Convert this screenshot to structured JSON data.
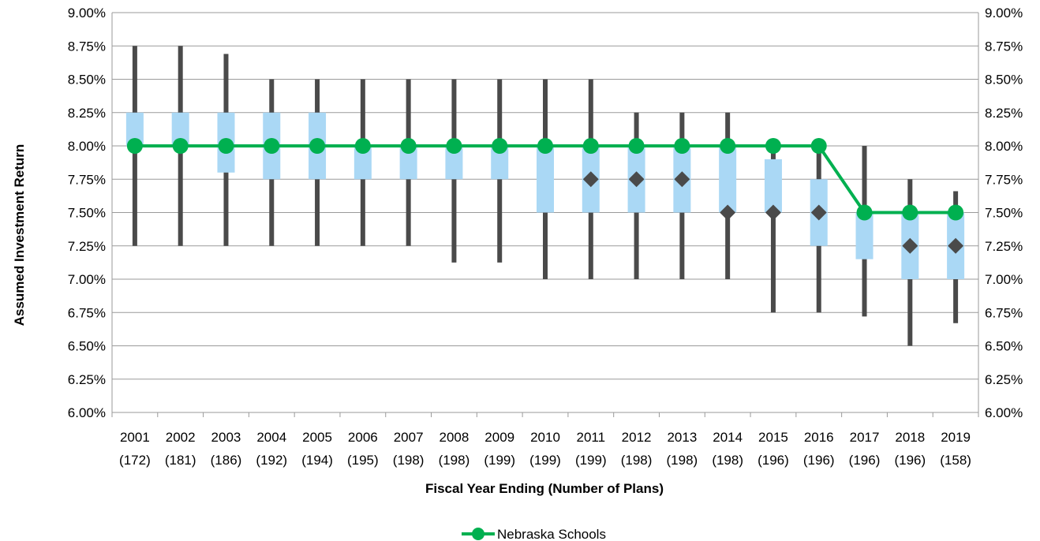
{
  "chart_data": {
    "type": "box",
    "xlabel": "Fiscal Year Ending (Number of Plans)",
    "ylabel": "Assumed Investment Return",
    "ylim": [
      6.0,
      9.0
    ],
    "y_tick_labels": [
      "6.00%",
      "6.25%",
      "6.50%",
      "6.75%",
      "7.00%",
      "7.25%",
      "7.50%",
      "7.75%",
      "8.00%",
      "8.25%",
      "8.50%",
      "8.75%",
      "9.00%"
    ],
    "y_ticks": [
      6.0,
      6.25,
      6.5,
      6.75,
      7.0,
      7.25,
      7.5,
      7.75,
      8.0,
      8.25,
      8.5,
      8.75,
      9.0
    ],
    "categories": [
      "2001",
      "2002",
      "2003",
      "2004",
      "2005",
      "2006",
      "2007",
      "2008",
      "2009",
      "2010",
      "2011",
      "2012",
      "2013",
      "2014",
      "2015",
      "2016",
      "2017",
      "2018",
      "2019"
    ],
    "plan_counts": [
      "(172)",
      "(181)",
      "(186)",
      "(192)",
      "(194)",
      "(195)",
      "(198)",
      "(198)",
      "(199)",
      "(199)",
      "(199)",
      "(198)",
      "(198)",
      "(198)",
      "(196)",
      "(196)",
      "(196)",
      "(196)",
      "(158)"
    ],
    "whisker_min": [
      7.25,
      7.25,
      7.25,
      7.25,
      7.25,
      7.25,
      7.25,
      7.125,
      7.125,
      7.0,
      7.0,
      7.0,
      7.0,
      7.0,
      6.75,
      6.75,
      6.72,
      6.5,
      6.67
    ],
    "whisker_max": [
      8.75,
      8.75,
      8.69,
      8.5,
      8.5,
      8.5,
      8.5,
      8.5,
      8.5,
      8.5,
      8.5,
      8.25,
      8.25,
      8.25,
      8.0,
      8.0,
      8.0,
      7.75,
      7.66
    ],
    "box_low": [
      8.0,
      8.0,
      7.8,
      7.75,
      7.75,
      7.75,
      7.75,
      7.75,
      7.75,
      7.5,
      7.5,
      7.5,
      7.5,
      7.5,
      7.5,
      7.25,
      7.15,
      7.0,
      7.0
    ],
    "box_high": [
      8.25,
      8.25,
      8.25,
      8.25,
      8.25,
      8.0,
      8.0,
      8.0,
      8.0,
      8.0,
      8.0,
      8.0,
      8.0,
      8.0,
      7.9,
      7.75,
      7.5,
      7.5,
      7.5
    ],
    "median": [
      8.0,
      8.0,
      8.0,
      8.0,
      8.0,
      8.0,
      8.0,
      8.0,
      8.0,
      8.0,
      7.75,
      7.75,
      7.75,
      7.5,
      7.5,
      7.5,
      7.5,
      7.25,
      7.25
    ],
    "series": [
      {
        "name": "Nebraska Schools",
        "color": "#00b050",
        "values": [
          8.0,
          8.0,
          8.0,
          8.0,
          8.0,
          8.0,
          8.0,
          8.0,
          8.0,
          8.0,
          8.0,
          8.0,
          8.0,
          8.0,
          8.0,
          8.0,
          7.5,
          7.5,
          7.5
        ]
      }
    ],
    "colors": {
      "box": "#aad8f5",
      "whisker": "#4a4a4a",
      "median_marker": "#4a4a4a",
      "grid": "#9a9a9a"
    },
    "grid": true,
    "legend_position": "bottom"
  }
}
